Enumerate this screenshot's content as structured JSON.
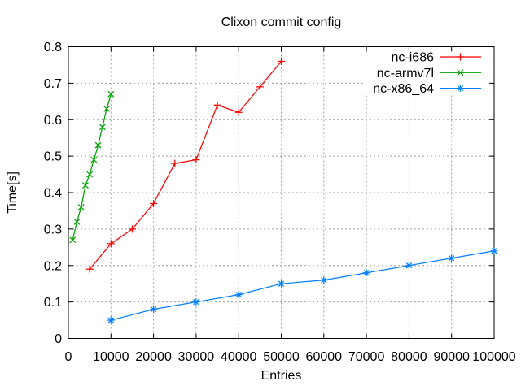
{
  "chart_data": {
    "type": "line",
    "title": "Clixon commit config",
    "xlabel": "Entries",
    "ylabel": "Time[s]",
    "xlim": [
      0,
      100000
    ],
    "ylim": [
      0,
      0.8
    ],
    "x_ticks": [
      0,
      10000,
      20000,
      30000,
      40000,
      50000,
      60000,
      70000,
      80000,
      90000,
      100000
    ],
    "x_tick_labels": [
      "0",
      "10000",
      "20000",
      "30000",
      "40000",
      "50000",
      "60000",
      "70000",
      "80000",
      "90000",
      "100000"
    ],
    "y_ticks": [
      0,
      0.1,
      0.2,
      0.3,
      0.4,
      0.5,
      0.6,
      0.7,
      0.8
    ],
    "y_tick_labels": [
      "0",
      "0.1",
      "0.2",
      "0.3",
      "0.4",
      "0.5",
      "0.6",
      "0.7",
      "0.8"
    ],
    "grid": true,
    "legend_position": "top-right-inside",
    "colors": {
      "background": "#ffffff",
      "grid": "#a0a0a0",
      "axis": "#000000",
      "text": "#000000"
    },
    "series": [
      {
        "name": "nc-i686",
        "color": "#ff0000",
        "marker": "plus",
        "x": [
          5000,
          10000,
          15000,
          20000,
          25000,
          30000,
          35000,
          40000,
          45000,
          50000
        ],
        "y": [
          0.19,
          0.26,
          0.3,
          0.37,
          0.48,
          0.49,
          0.64,
          0.62,
          0.69,
          0.76
        ]
      },
      {
        "name": "nc-armv7l",
        "color": "#00a000",
        "marker": "cross",
        "x": [
          1000,
          2000,
          3000,
          4000,
          5000,
          6000,
          7000,
          8000,
          9000,
          10000
        ],
        "y": [
          0.27,
          0.32,
          0.36,
          0.42,
          0.45,
          0.49,
          0.53,
          0.58,
          0.63,
          0.67
        ]
      },
      {
        "name": "nc-x86_64",
        "color": "#0080ff",
        "marker": "asterisk",
        "x": [
          10000,
          20000,
          30000,
          40000,
          50000,
          60000,
          70000,
          80000,
          90000,
          100000
        ],
        "y": [
          0.05,
          0.08,
          0.1,
          0.12,
          0.15,
          0.16,
          0.18,
          0.2,
          0.22,
          0.24
        ]
      }
    ]
  }
}
